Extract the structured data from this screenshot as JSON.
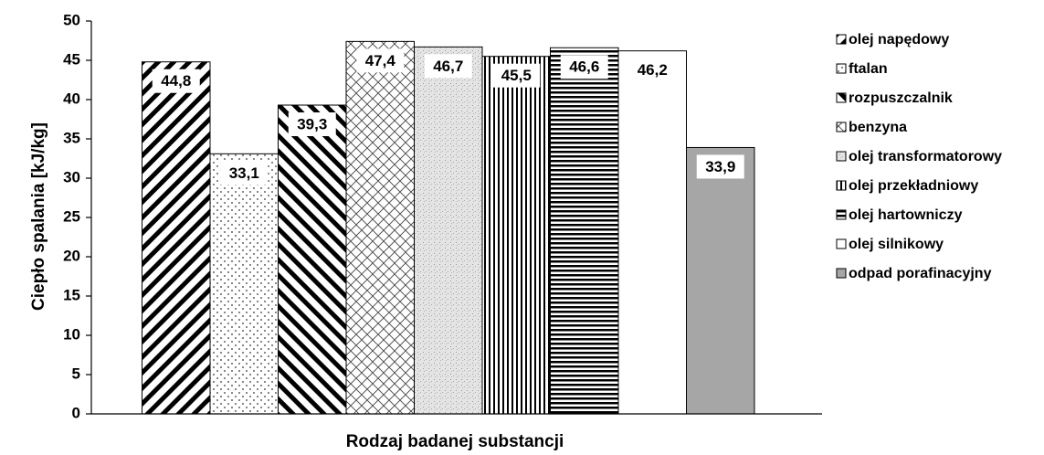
{
  "chart_data": {
    "type": "bar",
    "ylabel": "Ciepło spalania [kJ/kg]",
    "xlabel": "Rodzaj badanej substancji",
    "ylim": [
      0,
      50
    ],
    "yticks": [
      "0",
      "5",
      "10",
      "15",
      "20",
      "25",
      "30",
      "35",
      "40",
      "45",
      "50"
    ],
    "grid": false,
    "legend_position": "right",
    "series": [
      {
        "name": "olej napędowy",
        "value": 44.8,
        "label": "44,8",
        "pattern": "diag-right-thick"
      },
      {
        "name": "ftalan",
        "value": 33.1,
        "label": "33,1",
        "pattern": "dots"
      },
      {
        "name": "rozpuszczalnik",
        "value": 39.3,
        "label": "39,3",
        "pattern": "diag-left-thick"
      },
      {
        "name": "benzyna",
        "value": 47.4,
        "label": "47,4",
        "pattern": "crosshatch"
      },
      {
        "name": "olej transformatorowy",
        "value": 46.7,
        "label": "46,7",
        "pattern": "speckle"
      },
      {
        "name": "olej przekładniowy",
        "value": 45.5,
        "label": "45,5",
        "pattern": "vertical"
      },
      {
        "name": "olej hartowniczy",
        "value": 46.6,
        "label": "46,6",
        "pattern": "horizontal"
      },
      {
        "name": "olej silnikowy",
        "value": 46.2,
        "label": "46,2",
        "pattern": "none"
      },
      {
        "name": "odpad porafinacyjny",
        "value": 33.9,
        "label": "33,9",
        "pattern": "gray"
      }
    ]
  }
}
